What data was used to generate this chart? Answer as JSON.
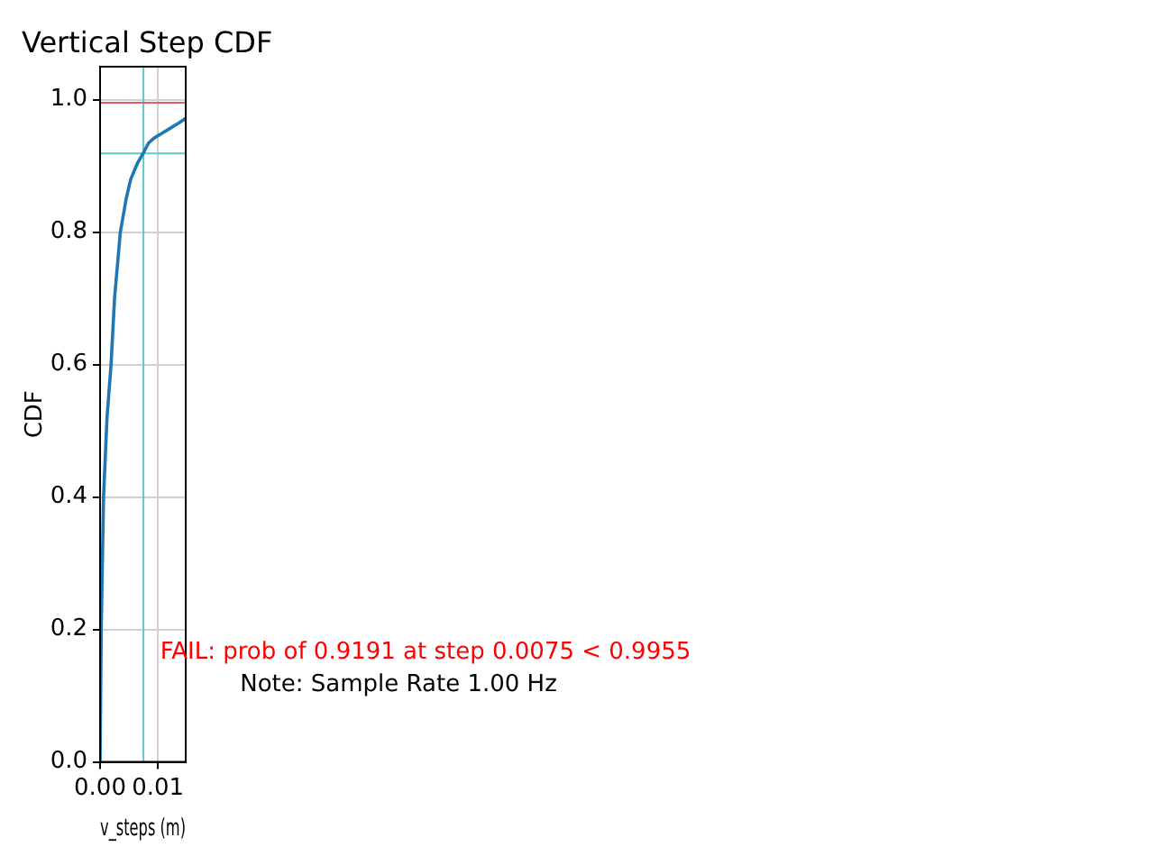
{
  "chart_data": {
    "type": "line",
    "title": "Vertical Step CDF",
    "xlabel": "v_steps (m)",
    "ylabel": "CDF",
    "x": [
      0,
      0.0002,
      0.0006,
      0.0012,
      0.0019,
      0.0025,
      0.0035,
      0.0045,
      0.0053,
      0.0065,
      0.0075,
      0.0084,
      0.0093,
      0.0108,
      0.0123,
      0.0136,
      0.0148
    ],
    "series": [
      {
        "color": "#1f77b4",
        "values": [
          0,
          0.2,
          0.4,
          0.52,
          0.6,
          0.7,
          0.8,
          0.85,
          0.88,
          0.905,
          0.92,
          0.935,
          0.942,
          0.95,
          0.958,
          0.965,
          0.972
        ]
      }
    ],
    "xlim": [
      0,
      0.0148
    ],
    "ylim": [
      0,
      1.05
    ],
    "xticks": [
      {
        "value": 0,
        "label": "0.00"
      },
      {
        "value": 0.01,
        "label": "0.01"
      }
    ],
    "yticks": [
      {
        "value": 0,
        "label": "0.0"
      },
      {
        "value": 0.2,
        "label": "0.2"
      },
      {
        "value": 0.4,
        "label": "0.4"
      },
      {
        "value": 0.6,
        "label": "0.6"
      },
      {
        "value": 0.8,
        "label": "0.8"
      },
      {
        "value": 1,
        "label": "1.0"
      }
    ],
    "ref_lines": [
      {
        "axis": "x",
        "value": 0.0075,
        "color": "#5cc8c8"
      },
      {
        "axis": "y",
        "value": 0.9191,
        "color": "#5cc8c8"
      },
      {
        "axis": "y",
        "value": 0.9955,
        "color": "#e06060"
      }
    ],
    "annotations": [
      "FAIL: prob of 0.9191 at step 0.0075 < 0.9955",
      "Note: Sample Rate 1.00 Hz"
    ],
    "grid": true,
    "legend": false,
    "marker": "none",
    "line_style": "solid"
  }
}
